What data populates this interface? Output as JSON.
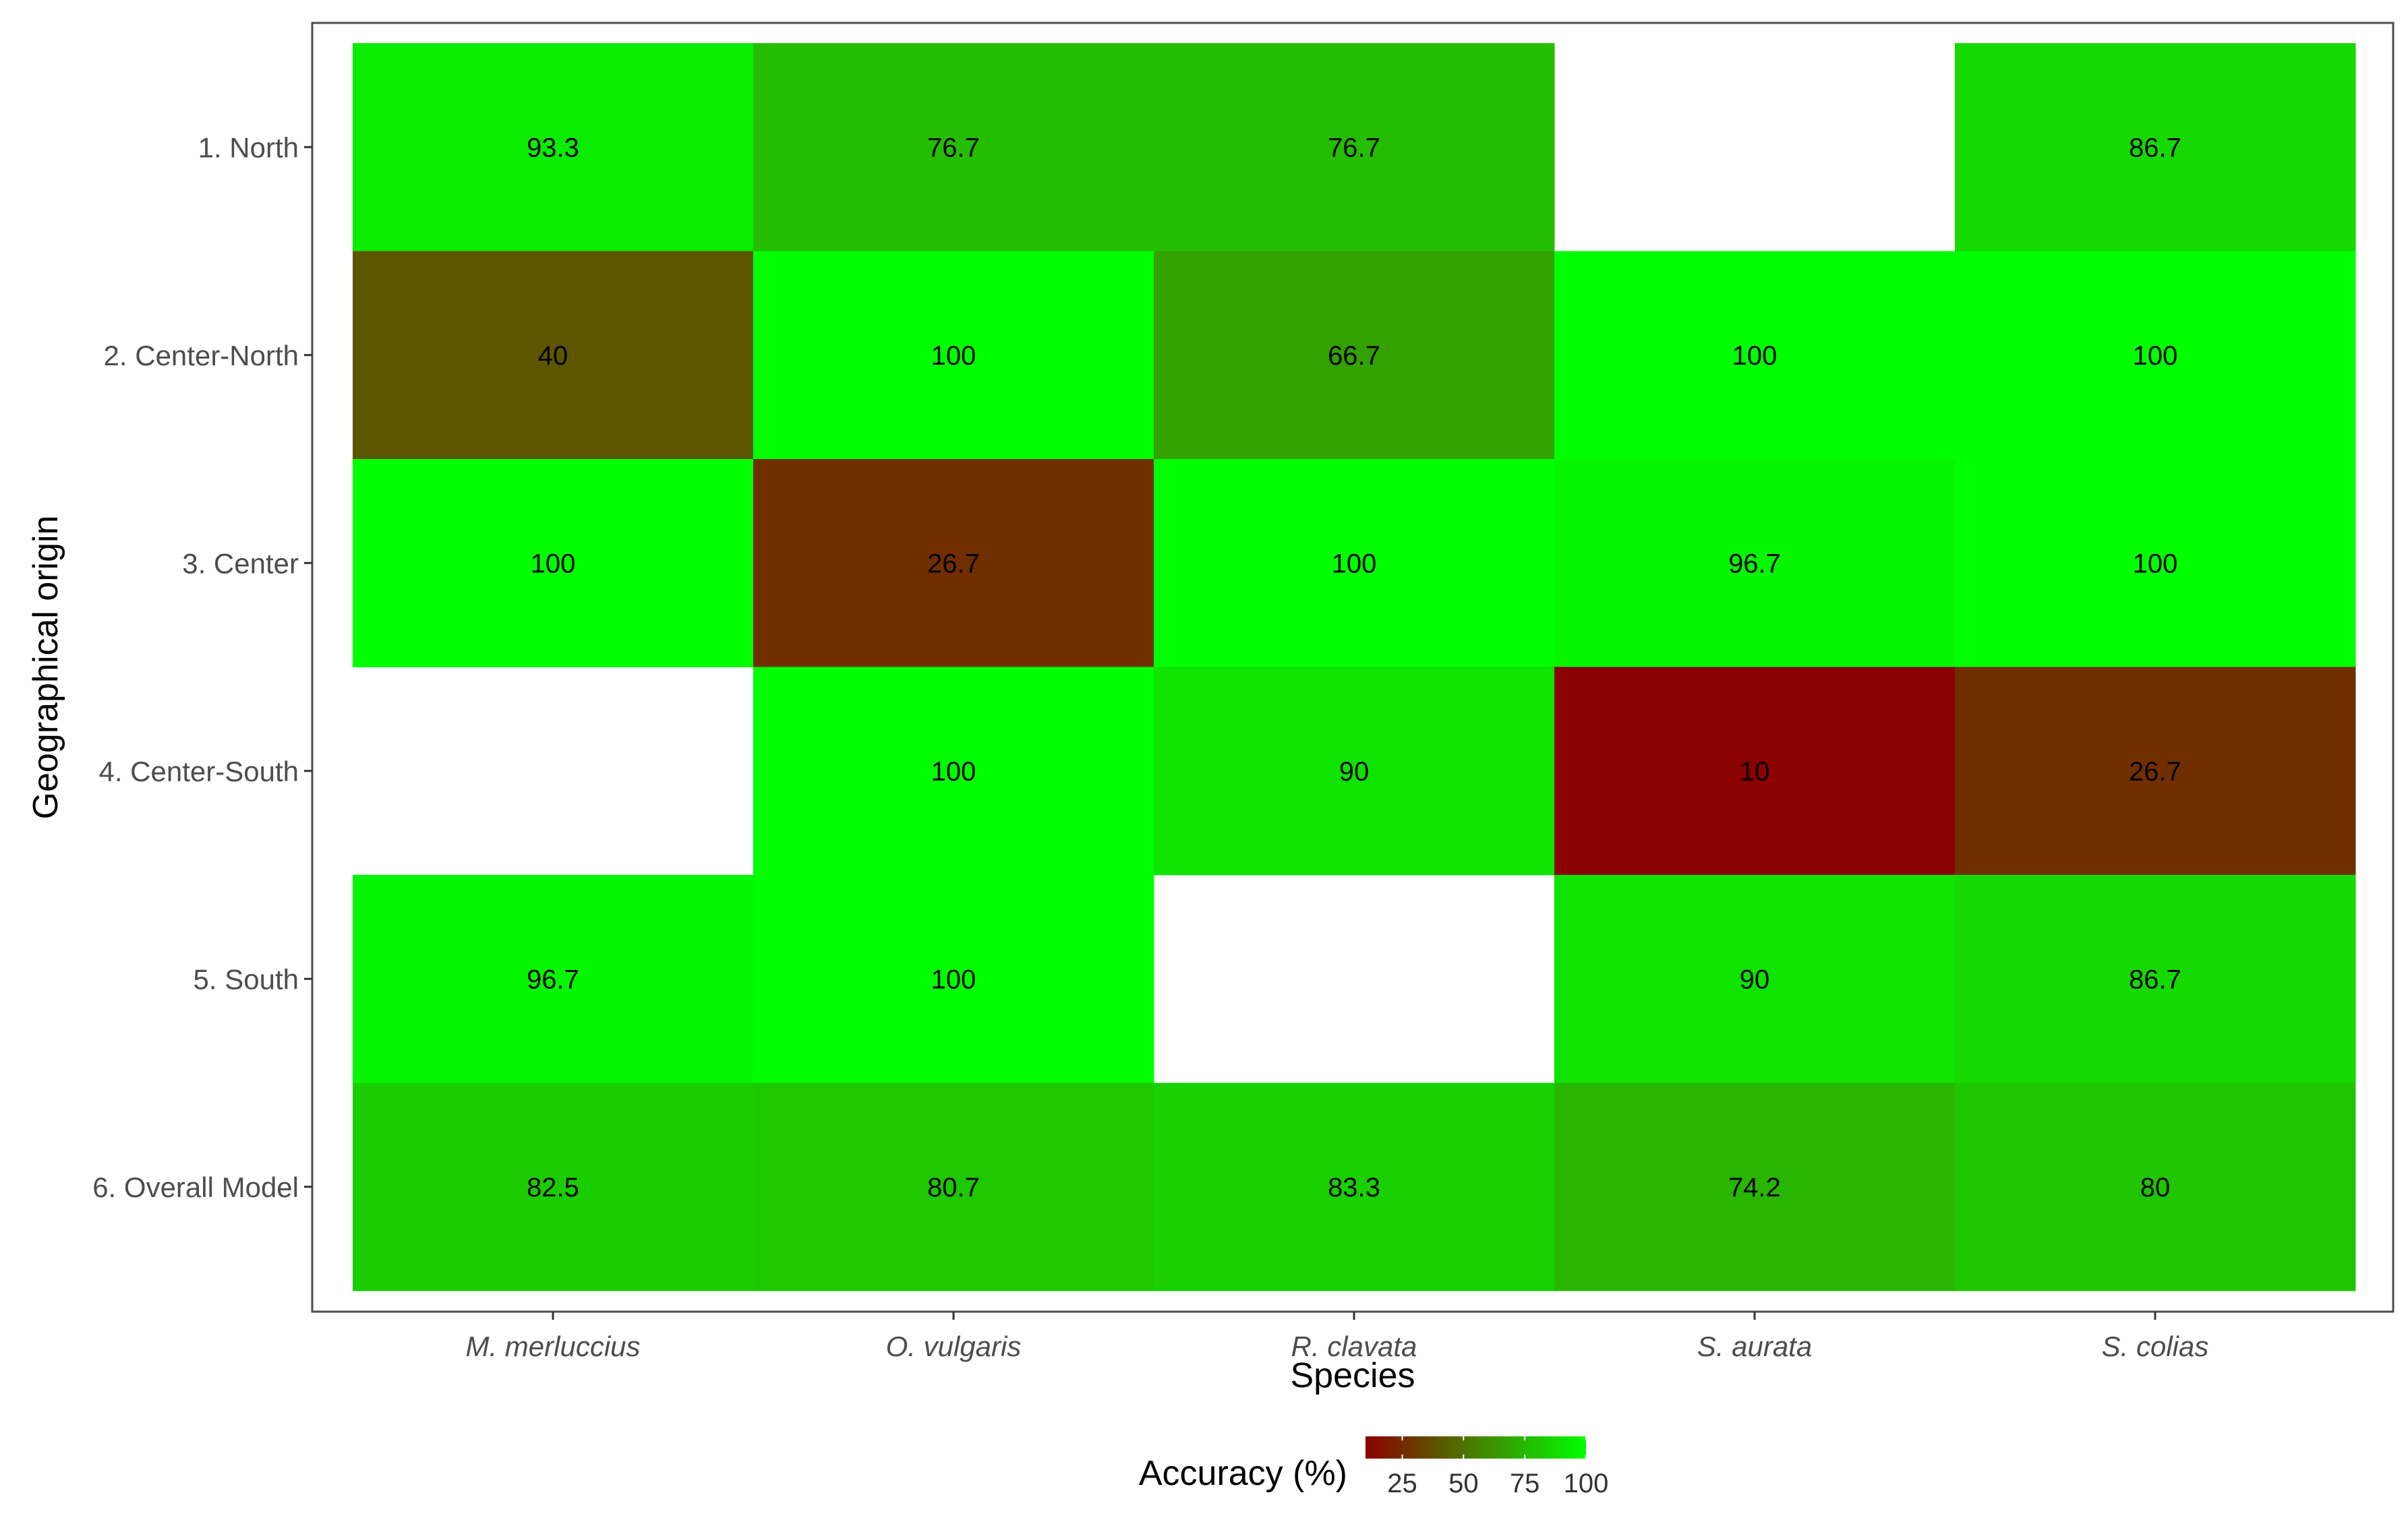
{
  "chart_data": {
    "type": "heatmap",
    "x_categories": [
      "M. merluccius",
      "O. vulgaris",
      "R. clavata",
      "S. aurata",
      "S. colias"
    ],
    "y_categories": [
      "1. North",
      "2. Center-North",
      "3. Center",
      "4. Center-South",
      "5. South",
      "6. Overall Model"
    ],
    "values": [
      [
        93.3,
        76.7,
        76.7,
        null,
        86.7
      ],
      [
        40,
        100,
        66.7,
        100,
        100
      ],
      [
        100,
        26.7,
        100,
        96.7,
        100
      ],
      [
        null,
        100,
        90,
        10,
        26.7
      ],
      [
        96.7,
        100,
        null,
        90,
        86.7
      ],
      [
        82.5,
        80.7,
        83.3,
        74.2,
        80
      ]
    ],
    "value_labels": [
      [
        "93.3",
        "76.7",
        "76.7",
        "",
        "86.7"
      ],
      [
        "40",
        "100",
        "66.7",
        "100",
        "100"
      ],
      [
        "100",
        "26.7",
        "100",
        "96.7",
        "100"
      ],
      [
        "",
        "100",
        "90",
        "10",
        "26.7"
      ],
      [
        "96.7",
        "100",
        "",
        "90",
        "86.7"
      ],
      [
        "82.5",
        "80.7",
        "83.3",
        "74.2",
        "80"
      ]
    ],
    "xlabel": "Species",
    "ylabel": "Geographical origin",
    "legend": {
      "title": "Accuracy (%)",
      "ticks": [
        25,
        50,
        75,
        100
      ],
      "tick_labels": [
        "25",
        "50",
        "75",
        "100"
      ],
      "range": [
        10,
        100
      ],
      "position": "bottom"
    },
    "color_scale": {
      "low": "#8b0000",
      "high": "#00ff00"
    },
    "missing_color": "#ffffff",
    "grid": false
  }
}
